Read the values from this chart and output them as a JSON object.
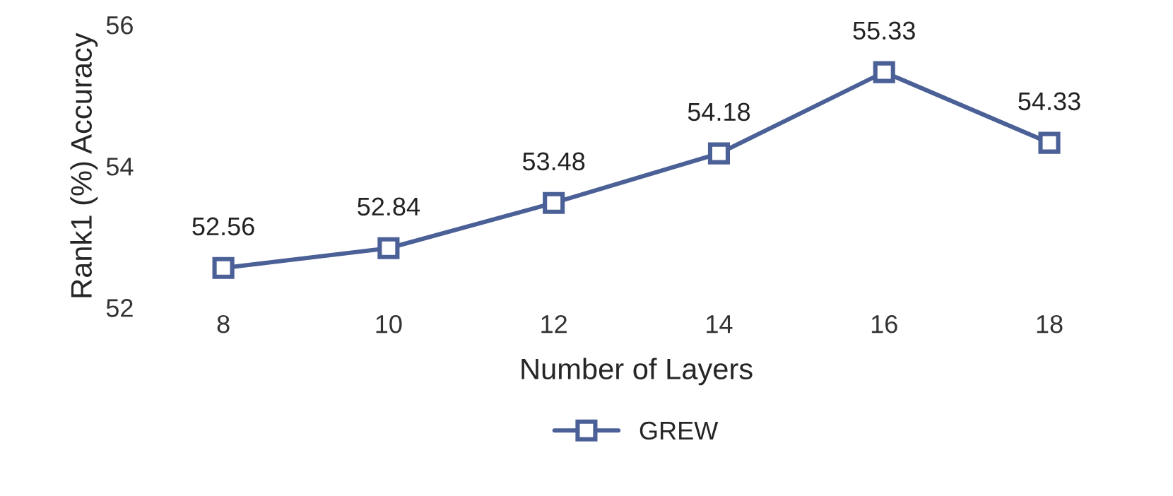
{
  "chart_data": {
    "type": "line",
    "xlabel": "Number of Layers",
    "ylabel": "Rank1 (%) Accuracy",
    "categories": [
      "8",
      "10",
      "12",
      "14",
      "16",
      "18"
    ],
    "series": [
      {
        "name": "GREW",
        "color": "#4a6096",
        "values": [
          52.56,
          52.84,
          53.48,
          54.18,
          55.33,
          54.33
        ]
      }
    ],
    "ylim": [
      52,
      56
    ],
    "yticks": [
      52,
      54,
      56
    ],
    "marker": "square",
    "line_style": "solid",
    "data_labels": true,
    "legend": "bottom",
    "grid": false
  }
}
